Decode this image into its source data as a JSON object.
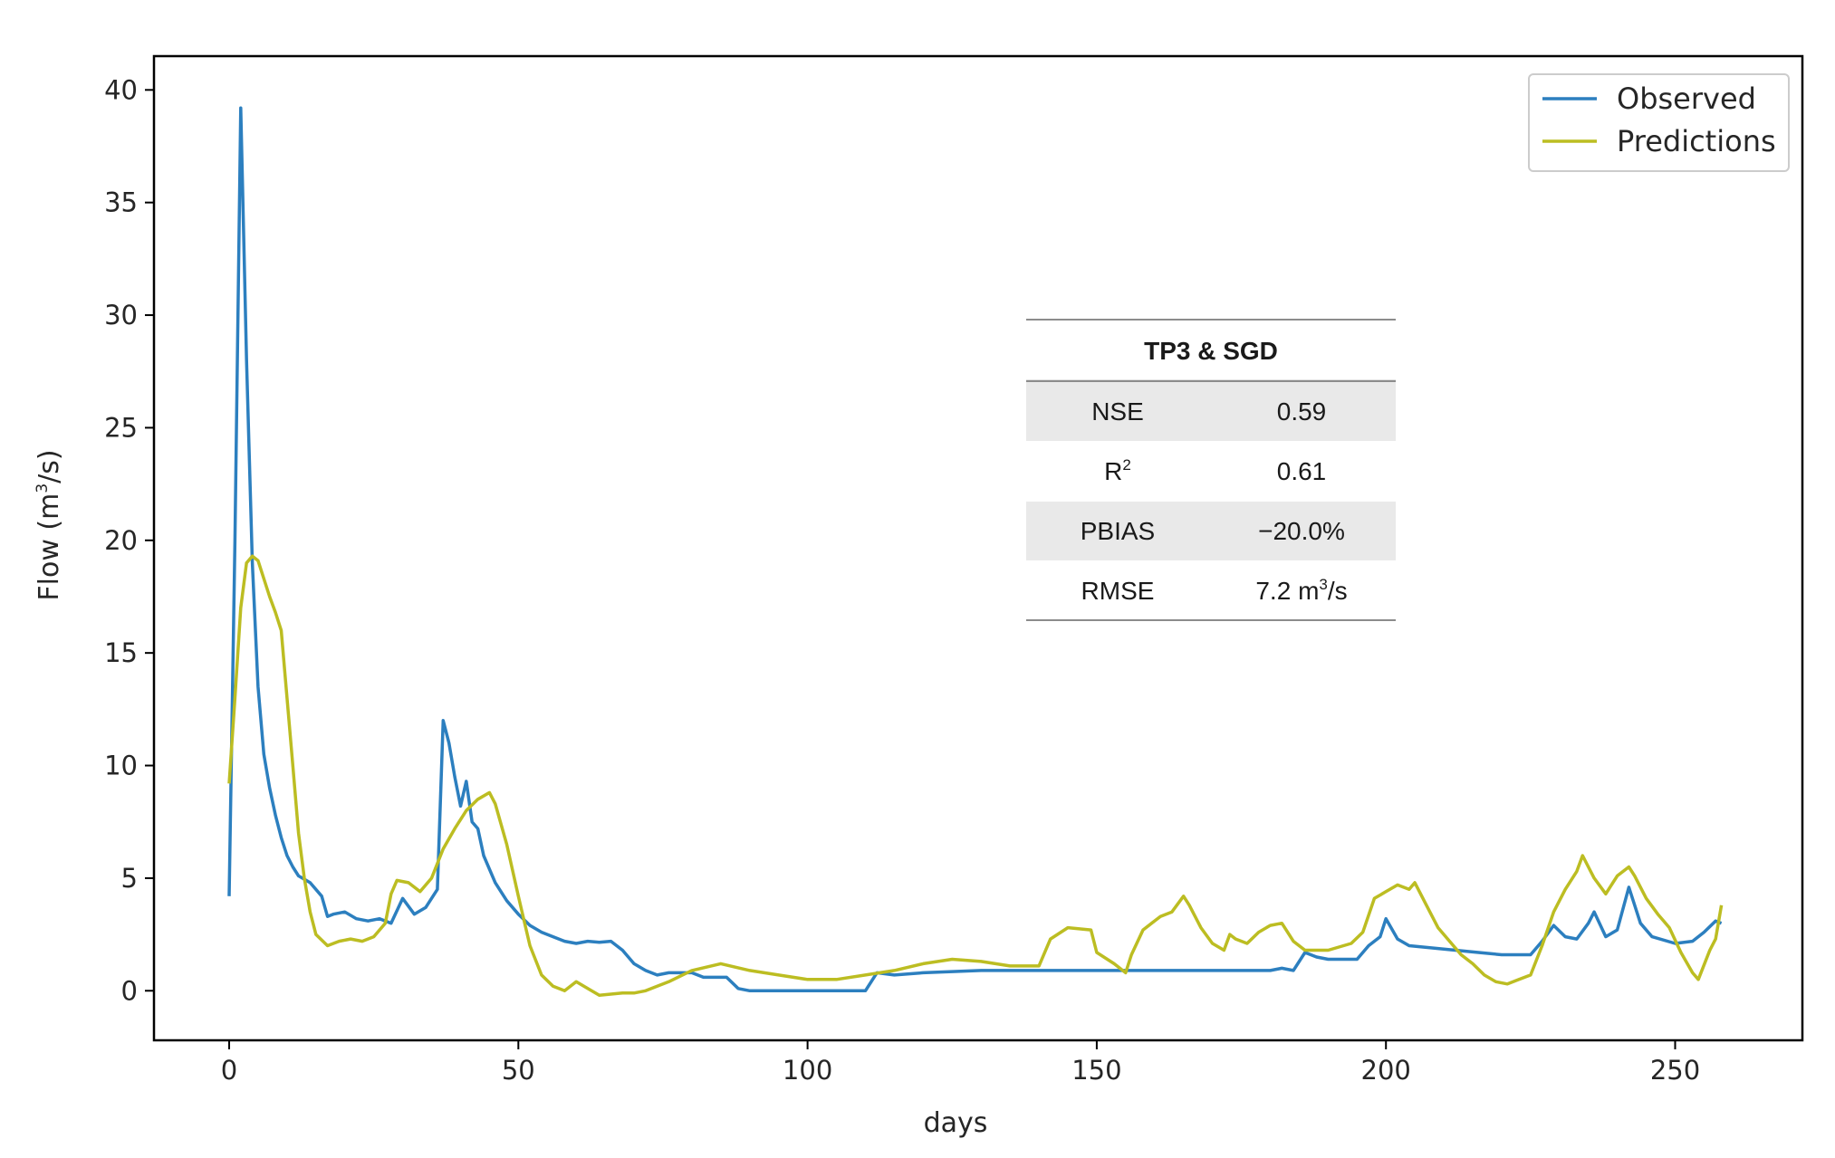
{
  "chart_data": {
    "type": "line",
    "xlabel": "days",
    "ylabel": "Flow (m",
    "ylabel_sup": "3",
    "ylabel_tail": "/s)",
    "xlim": [
      -13,
      272
    ],
    "ylim": [
      -2.2,
      41.5
    ],
    "xticks": [
      0,
      50,
      100,
      150,
      200,
      250
    ],
    "yticks": [
      0,
      5,
      10,
      15,
      20,
      25,
      30,
      35,
      40
    ],
    "legend_position": "top-right",
    "series": [
      {
        "name": "Observed",
        "color": "#2c7fbf",
        "points": [
          [
            0,
            4.2
          ],
          [
            1,
            20
          ],
          [
            2,
            39.2
          ],
          [
            3,
            28
          ],
          [
            4,
            19
          ],
          [
            5,
            13.5
          ],
          [
            6,
            10.5
          ],
          [
            7,
            9
          ],
          [
            8,
            7.8
          ],
          [
            9,
            6.8
          ],
          [
            10,
            6
          ],
          [
            11,
            5.5
          ],
          [
            12,
            5.1
          ],
          [
            14,
            4.8
          ],
          [
            16,
            4.2
          ],
          [
            17,
            3.3
          ],
          [
            18,
            3.4
          ],
          [
            20,
            3.5
          ],
          [
            22,
            3.2
          ],
          [
            24,
            3.1
          ],
          [
            26,
            3.2
          ],
          [
            28,
            3
          ],
          [
            30,
            4.1
          ],
          [
            32,
            3.4
          ],
          [
            34,
            3.7
          ],
          [
            36,
            4.5
          ],
          [
            37,
            12
          ],
          [
            38,
            11
          ],
          [
            39,
            9.5
          ],
          [
            40,
            8.2
          ],
          [
            41,
            9.3
          ],
          [
            42,
            7.5
          ],
          [
            43,
            7.2
          ],
          [
            44,
            6
          ],
          [
            46,
            4.8
          ],
          [
            48,
            4
          ],
          [
            50,
            3.4
          ],
          [
            52,
            2.9
          ],
          [
            54,
            2.6
          ],
          [
            56,
            2.4
          ],
          [
            58,
            2.2
          ],
          [
            60,
            2.1
          ],
          [
            62,
            2.2
          ],
          [
            64,
            2.15
          ],
          [
            66,
            2.2
          ],
          [
            68,
            1.8
          ],
          [
            70,
            1.2
          ],
          [
            72,
            0.9
          ],
          [
            74,
            0.7
          ],
          [
            76,
            0.8
          ],
          [
            80,
            0.8
          ],
          [
            82,
            0.6
          ],
          [
            86,
            0.6
          ],
          [
            88,
            0.1
          ],
          [
            90,
            0
          ],
          [
            95,
            0
          ],
          [
            100,
            0
          ],
          [
            110,
            0
          ],
          [
            112,
            0.8
          ],
          [
            115,
            0.7
          ],
          [
            120,
            0.8
          ],
          [
            130,
            0.9
          ],
          [
            140,
            0.9
          ],
          [
            150,
            0.9
          ],
          [
            160,
            0.9
          ],
          [
            170,
            0.9
          ],
          [
            180,
            0.9
          ],
          [
            182,
            1
          ],
          [
            184,
            0.9
          ],
          [
            186,
            1.7
          ],
          [
            188,
            1.5
          ],
          [
            190,
            1.4
          ],
          [
            195,
            1.4
          ],
          [
            197,
            2
          ],
          [
            199,
            2.4
          ],
          [
            200,
            3.2
          ],
          [
            202,
            2.3
          ],
          [
            204,
            2
          ],
          [
            208,
            1.9
          ],
          [
            212,
            1.8
          ],
          [
            216,
            1.7
          ],
          [
            220,
            1.6
          ],
          [
            225,
            1.6
          ],
          [
            227,
            2.2
          ],
          [
            229,
            2.9
          ],
          [
            231,
            2.4
          ],
          [
            233,
            2.3
          ],
          [
            235,
            3
          ],
          [
            236,
            3.5
          ],
          [
            238,
            2.4
          ],
          [
            240,
            2.7
          ],
          [
            242,
            4.6
          ],
          [
            244,
            3
          ],
          [
            246,
            2.4
          ],
          [
            250,
            2.1
          ],
          [
            253,
            2.2
          ],
          [
            255,
            2.6
          ],
          [
            257,
            3.1
          ],
          [
            258,
            3
          ]
        ]
      },
      {
        "name": "Predictions",
        "color": "#bcbd22",
        "points": [
          [
            0,
            9.2
          ],
          [
            1,
            13
          ],
          [
            2,
            17
          ],
          [
            3,
            19
          ],
          [
            4,
            19.3
          ],
          [
            5,
            19.1
          ],
          [
            6,
            18.3
          ],
          [
            7,
            17.5
          ],
          [
            8,
            16.8
          ],
          [
            9,
            16
          ],
          [
            10,
            13
          ],
          [
            11,
            10
          ],
          [
            12,
            7
          ],
          [
            13,
            5
          ],
          [
            14,
            3.5
          ],
          [
            15,
            2.5
          ],
          [
            17,
            2
          ],
          [
            19,
            2.2
          ],
          [
            21,
            2.3
          ],
          [
            23,
            2.2
          ],
          [
            25,
            2.4
          ],
          [
            27,
            3
          ],
          [
            28,
            4.3
          ],
          [
            29,
            4.9
          ],
          [
            31,
            4.8
          ],
          [
            33,
            4.4
          ],
          [
            35,
            5
          ],
          [
            37,
            6.3
          ],
          [
            39,
            7.2
          ],
          [
            41,
            8
          ],
          [
            43,
            8.5
          ],
          [
            45,
            8.8
          ],
          [
            46,
            8.3
          ],
          [
            48,
            6.5
          ],
          [
            50,
            4.2
          ],
          [
            52,
            2
          ],
          [
            54,
            0.7
          ],
          [
            56,
            0.2
          ],
          [
            58,
            0
          ],
          [
            60,
            0.4
          ],
          [
            62,
            0.1
          ],
          [
            64,
            -0.2
          ],
          [
            68,
            -0.1
          ],
          [
            70,
            -0.1
          ],
          [
            72,
            0
          ],
          [
            76,
            0.4
          ],
          [
            80,
            0.9
          ],
          [
            85,
            1.2
          ],
          [
            90,
            0.9
          ],
          [
            95,
            0.7
          ],
          [
            100,
            0.5
          ],
          [
            105,
            0.5
          ],
          [
            110,
            0.7
          ],
          [
            115,
            0.9
          ],
          [
            120,
            1.2
          ],
          [
            125,
            1.4
          ],
          [
            130,
            1.3
          ],
          [
            135,
            1.1
          ],
          [
            140,
            1.1
          ],
          [
            142,
            2.3
          ],
          [
            145,
            2.8
          ],
          [
            149,
            2.7
          ],
          [
            150,
            1.7
          ],
          [
            153,
            1.2
          ],
          [
            155,
            0.8
          ],
          [
            156,
            1.6
          ],
          [
            158,
            2.7
          ],
          [
            161,
            3.3
          ],
          [
            163,
            3.5
          ],
          [
            165,
            4.2
          ],
          [
            166,
            3.8
          ],
          [
            168,
            2.8
          ],
          [
            170,
            2.1
          ],
          [
            172,
            1.8
          ],
          [
            173,
            2.5
          ],
          [
            174,
            2.3
          ],
          [
            176,
            2.1
          ],
          [
            178,
            2.6
          ],
          [
            180,
            2.9
          ],
          [
            182,
            3
          ],
          [
            184,
            2.2
          ],
          [
            186,
            1.8
          ],
          [
            190,
            1.8
          ],
          [
            194,
            2.1
          ],
          [
            196,
            2.6
          ],
          [
            198,
            4.1
          ],
          [
            200,
            4.4
          ],
          [
            202,
            4.7
          ],
          [
            204,
            4.5
          ],
          [
            205,
            4.8
          ],
          [
            207,
            3.8
          ],
          [
            209,
            2.8
          ],
          [
            211,
            2.2
          ],
          [
            213,
            1.6
          ],
          [
            215,
            1.2
          ],
          [
            217,
            0.7
          ],
          [
            219,
            0.4
          ],
          [
            221,
            0.3
          ],
          [
            223,
            0.5
          ],
          [
            225,
            0.7
          ],
          [
            227,
            2
          ],
          [
            229,
            3.5
          ],
          [
            231,
            4.5
          ],
          [
            233,
            5.3
          ],
          [
            234,
            6
          ],
          [
            235,
            5.5
          ],
          [
            236,
            5
          ],
          [
            238,
            4.3
          ],
          [
            240,
            5.1
          ],
          [
            242,
            5.5
          ],
          [
            243,
            5.1
          ],
          [
            245,
            4.1
          ],
          [
            247,
            3.4
          ],
          [
            249,
            2.8
          ],
          [
            251,
            1.7
          ],
          [
            253,
            0.8
          ],
          [
            254,
            0.5
          ],
          [
            256,
            1.8
          ],
          [
            257,
            2.3
          ],
          [
            258,
            3.8
          ]
        ]
      }
    ],
    "metrics_table": {
      "title": "TP3 & SGD",
      "rows": [
        {
          "label": "NSE",
          "value": "0.59"
        },
        {
          "label": "R",
          "label_sup": "2",
          "value": "0.61"
        },
        {
          "label": "PBIAS",
          "value": "−20.0%"
        },
        {
          "label": "RMSE",
          "value": "7.2 m",
          "value_sup": "3",
          "value_tail": "/s"
        }
      ],
      "stripe_color": "#e9e9e9",
      "rule_color": "#8c8c8c"
    }
  }
}
